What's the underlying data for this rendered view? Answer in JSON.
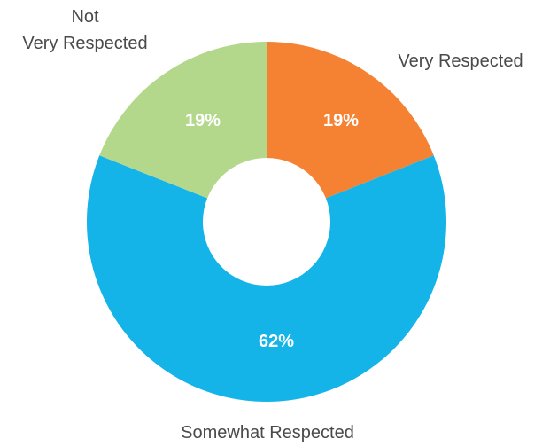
{
  "chart_data": {
    "type": "pie",
    "variant": "donut",
    "title": "",
    "slices": [
      {
        "label": "Very Respected",
        "value": 19,
        "display": "19%",
        "color": "#f58233"
      },
      {
        "label": "Somewhat Respected",
        "value": 62,
        "display": "62%",
        "color": "#15b4e8"
      },
      {
        "label": "Not Very Respected",
        "label_lines": [
          "Not",
          "Very Respected"
        ],
        "value": 19,
        "display": "19%",
        "color": "#b3d78b"
      }
    ]
  }
}
